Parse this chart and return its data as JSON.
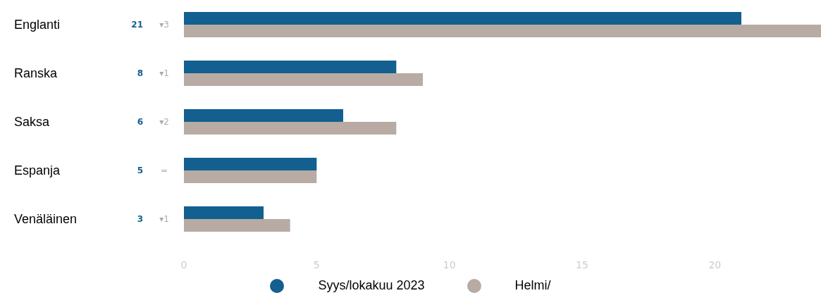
{
  "chart_data": {
    "type": "bar",
    "orientation": "horizontal",
    "categories": [
      "Englanti",
      "Ranska",
      "Saksa",
      "Espanja",
      "Venäläinen"
    ],
    "series": [
      {
        "name": "Syys/lokakuu 2023",
        "color": "#135f8f",
        "values": [
          21,
          8,
          6,
          5,
          3
        ],
        "value_labels": [
          "21",
          "8",
          "6",
          "5",
          "3"
        ]
      },
      {
        "name": "Helmi/",
        "color": "#b8aba3",
        "values": [
          24,
          9,
          8,
          5,
          4
        ]
      }
    ],
    "annotations": [
      "▾3",
      "▾1",
      "▾2",
      "=",
      "▾1"
    ],
    "xlim": [
      0,
      24
    ],
    "xticks": [
      0,
      5,
      10,
      15,
      20
    ],
    "legend": "bottom"
  }
}
